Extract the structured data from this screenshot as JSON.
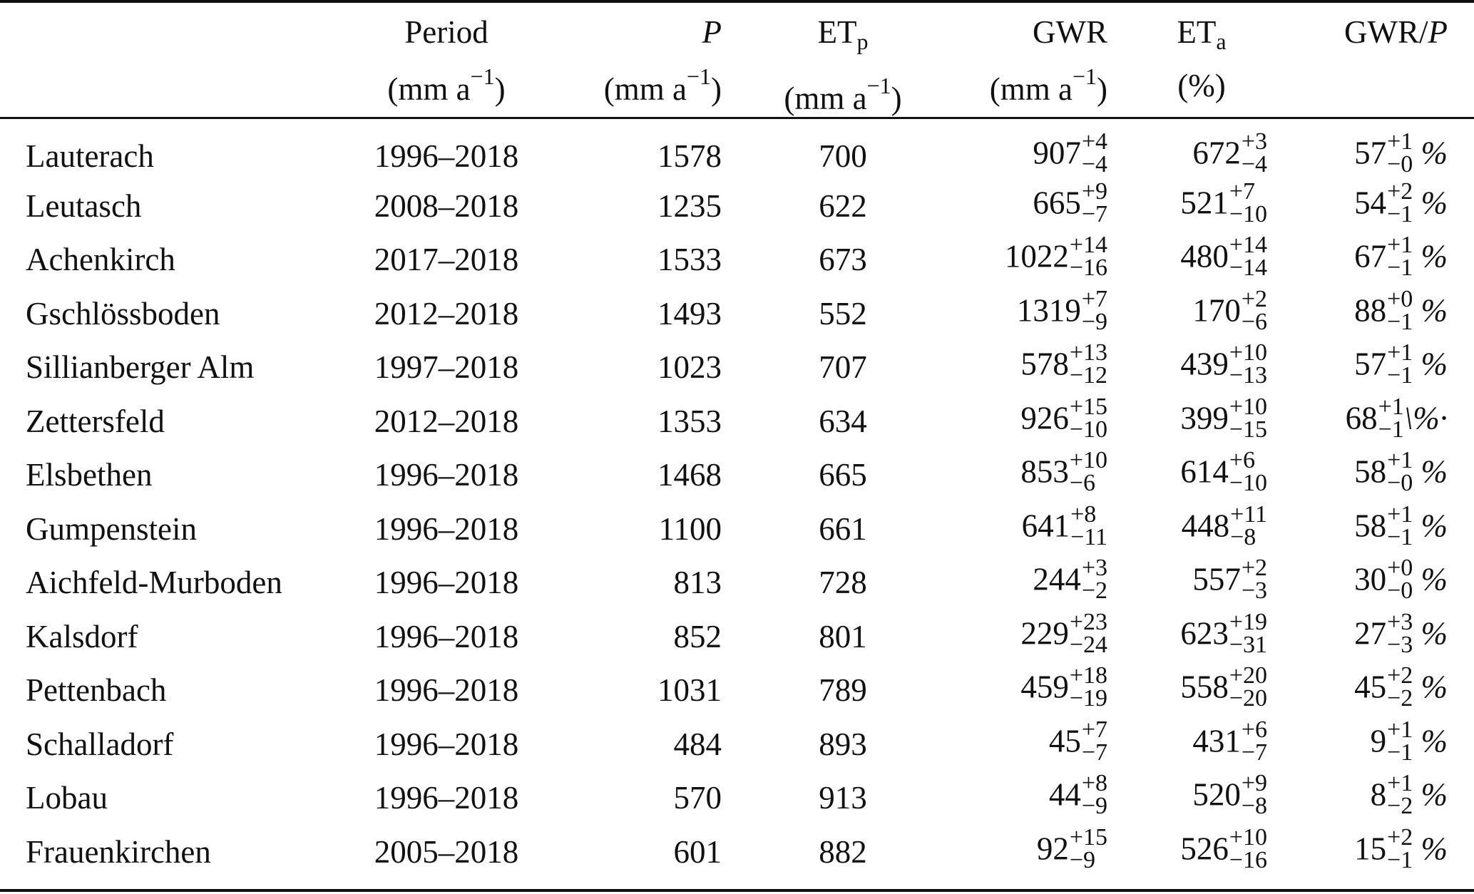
{
  "headers": {
    "period": [
      "Period",
      "(mm a",
      "−1",
      ")"
    ],
    "p": [
      "P",
      "(mm a",
      "−1",
      ")"
    ],
    "etp": [
      "ET",
      "p",
      "(mm a",
      "−1",
      ")"
    ],
    "gwr": [
      "GWR",
      "(mm a",
      "−1",
      ")"
    ],
    "eta": [
      "ET",
      "a",
      "(%)"
    ],
    "ratio": [
      "GWR/",
      "P"
    ]
  },
  "rows": [
    {
      "site": "Lauterach",
      "period": "1996–2018",
      "p": "1578",
      "etp": "700",
      "gwr": {
        "v": "907",
        "plus": "+4",
        "minus": "−4"
      },
      "eta": {
        "v": "672",
        "plus": "+3",
        "minus": "−4"
      },
      "ratio": {
        "v": "57",
        "plus": "+1",
        "minus": "−0",
        "suffix": " %"
      }
    },
    {
      "site": "Leutasch",
      "period": "2008–2018",
      "p": "1235",
      "etp": "622",
      "gwr": {
        "v": "665",
        "plus": "+9",
        "minus": "−7"
      },
      "eta": {
        "v": "521",
        "plus": "+7",
        "minus": "−10"
      },
      "ratio": {
        "v": "54",
        "plus": "+2",
        "minus": "−1",
        "suffix": " %"
      }
    },
    {
      "site": "Achenkirch",
      "period": "2017–2018",
      "p": "1533",
      "etp": "673",
      "gwr": {
        "v": "1022",
        "plus": "+14",
        "minus": "−16"
      },
      "eta": {
        "v": "480",
        "plus": "+14",
        "minus": "−14"
      },
      "ratio": {
        "v": "67",
        "plus": "+1",
        "minus": "−1",
        "suffix": " %"
      }
    },
    {
      "site": "Gschlössboden",
      "period": "2012–2018",
      "p": "1493",
      "etp": "552",
      "gwr": {
        "v": "1319",
        "plus": "+7",
        "minus": "−9"
      },
      "eta": {
        "v": "170",
        "plus": "+2",
        "minus": "−6"
      },
      "ratio": {
        "v": "88",
        "plus": "+0",
        "minus": "−1",
        "suffix": " %"
      }
    },
    {
      "site": "Sillianberger Alm",
      "period": "1997–2018",
      "p": "1023",
      "etp": "707",
      "gwr": {
        "v": "578",
        "plus": "+13",
        "minus": "−12"
      },
      "eta": {
        "v": "439",
        "plus": "+10",
        "minus": "−13"
      },
      "ratio": {
        "v": "57",
        "plus": "+1",
        "minus": "−1",
        "suffix": " %"
      }
    },
    {
      "site": "Zettersfeld",
      "period": "2012–2018",
      "p": "1353",
      "etp": "634",
      "gwr": {
        "v": "926",
        "plus": "+15",
        "minus": "−10"
      },
      "eta": {
        "v": "399",
        "plus": "+10",
        "minus": "−15"
      },
      "ratio": {
        "v": "68",
        "plus": "+1",
        "minus": "−1",
        "suffix": "\\%·"
      }
    },
    {
      "site": "Elsbethen",
      "period": "1996–2018",
      "p": "1468",
      "etp": "665",
      "gwr": {
        "v": "853",
        "plus": "+10",
        "minus": "−6"
      },
      "eta": {
        "v": "614",
        "plus": "+6",
        "minus": "−10"
      },
      "ratio": {
        "v": "58",
        "plus": "+1",
        "minus": "−0",
        "suffix": " %"
      }
    },
    {
      "site": "Gumpenstein",
      "period": "1996–2018",
      "p": "1100",
      "etp": "661",
      "gwr": {
        "v": "641",
        "plus": "+8",
        "minus": "−11"
      },
      "eta": {
        "v": "448",
        "plus": "+11",
        "minus": "−8"
      },
      "ratio": {
        "v": "58",
        "plus": "+1",
        "minus": "−1",
        "suffix": " %"
      }
    },
    {
      "site": "Aichfeld-Murboden",
      "period": "1996–2018",
      "p": "813",
      "etp": "728",
      "gwr": {
        "v": "244",
        "plus": "+3",
        "minus": "−2"
      },
      "eta": {
        "v": "557",
        "plus": "+2",
        "minus": "−3"
      },
      "ratio": {
        "v": "30",
        "plus": "+0",
        "minus": "−0",
        "suffix": " %"
      }
    },
    {
      "site": "Kalsdorf",
      "period": "1996–2018",
      "p": "852",
      "etp": "801",
      "gwr": {
        "v": "229",
        "plus": "+23",
        "minus": "−24"
      },
      "eta": {
        "v": "623",
        "plus": "+19",
        "minus": "−31"
      },
      "ratio": {
        "v": "27",
        "plus": "+3",
        "minus": "−3",
        "suffix": " %"
      }
    },
    {
      "site": "Pettenbach",
      "period": "1996–2018",
      "p": "1031",
      "etp": "789",
      "gwr": {
        "v": "459",
        "plus": "+18",
        "minus": "−19"
      },
      "eta": {
        "v": "558",
        "plus": "+20",
        "minus": "−20"
      },
      "ratio": {
        "v": "45",
        "plus": "+2",
        "minus": "−2",
        "suffix": " %"
      }
    },
    {
      "site": "Schalladorf",
      "period": "1996–2018",
      "p": "484",
      "etp": "893",
      "gwr": {
        "v": "45",
        "plus": "+7",
        "minus": "−7"
      },
      "eta": {
        "v": "431",
        "plus": "+6",
        "minus": "−7"
      },
      "ratio": {
        "v": "9",
        "plus": "+1",
        "minus": "−1",
        "suffix": " %"
      }
    },
    {
      "site": "Lobau",
      "period": "1996–2018",
      "p": "570",
      "etp": "913",
      "gwr": {
        "v": "44",
        "plus": "+8",
        "minus": "−9"
      },
      "eta": {
        "v": "520",
        "plus": "+9",
        "minus": "−8"
      },
      "ratio": {
        "v": "8",
        "plus": "+1",
        "minus": "−2",
        "suffix": " %"
      }
    },
    {
      "site": "Frauenkirchen",
      "period": "2005–2018",
      "p": "601",
      "etp": "882",
      "gwr": {
        "v": "92",
        "plus": "+15",
        "minus": "−9"
      },
      "eta": {
        "v": "526",
        "plus": "+10",
        "minus": "−16"
      },
      "ratio": {
        "v": "15",
        "plus": "+2",
        "minus": "−1",
        "suffix": " %"
      }
    }
  ]
}
